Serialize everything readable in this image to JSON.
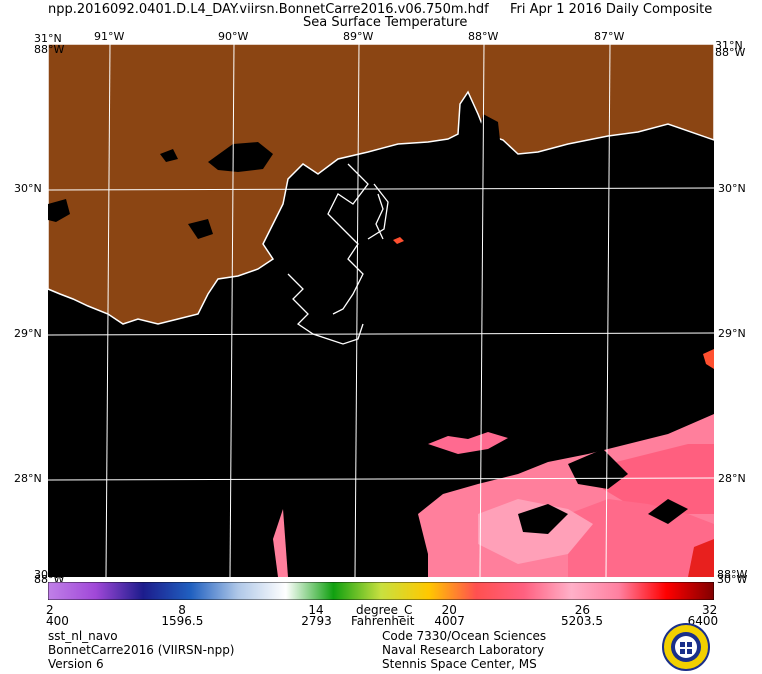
{
  "header": {
    "filename": "npp.2016092.0401.D.L4_DAY.viirsn.BonnetCarre2016.v06.750m.hdf",
    "date": "Fri Apr  1 2016 Daily Composite",
    "product": "Sea Surface Temperature"
  },
  "map": {
    "lon_labels": [
      "91°W",
      "90°W",
      "89°W",
      "88°W",
      "87°W"
    ],
    "lat_labels": [
      "30°N",
      "29°N",
      "28°N"
    ],
    "corner_top_left": "31°N",
    "corner_top_left_overlap": "88°W",
    "corner_top_right": "31°N",
    "corner_top_right_overlap": "88°W",
    "corner_bottom_left": "30°W",
    "corner_bottom_left_overlap": "88°W",
    "corner_bottom_right": "88°W",
    "corner_bottom_right_overlap": "30°W",
    "colors": {
      "land": "#8b4513",
      "no_data": "#000000",
      "coastline": "#ffffff",
      "graticule": "#ffffff"
    },
    "graticule": true
  },
  "colorbar": {
    "celsius_ticks": [
      "2",
      "8",
      "14",
      "20",
      "26",
      "32"
    ],
    "fahrenheit_ticks": [
      "400",
      "1596.5",
      "2793",
      "4007",
      "5203.5",
      "6400"
    ],
    "unit_c": "degree_C",
    "unit_f": "Fahrenheit",
    "colors": [
      "#c080e8",
      "#a048d8",
      "#1c1c8c",
      "#2060c0",
      "#b0c8e8",
      "#ffffff",
      "#10a010",
      "#c8e040",
      "#ffc800",
      "#ff5050",
      "#ff6080",
      "#ffb0c8",
      "#ff80a0",
      "#ff0000",
      "#800000"
    ]
  },
  "footer": {
    "left": [
      "sst_nl_navo",
      "BonnetCarre2016 (VIIRSN-npp)",
      "Version 6"
    ],
    "right": [
      "Code 7330/Ocean Sciences",
      "Naval Research Laboratory",
      "Stennis Space Center, MS"
    ],
    "seal_icon": "nrl-seal-icon"
  }
}
